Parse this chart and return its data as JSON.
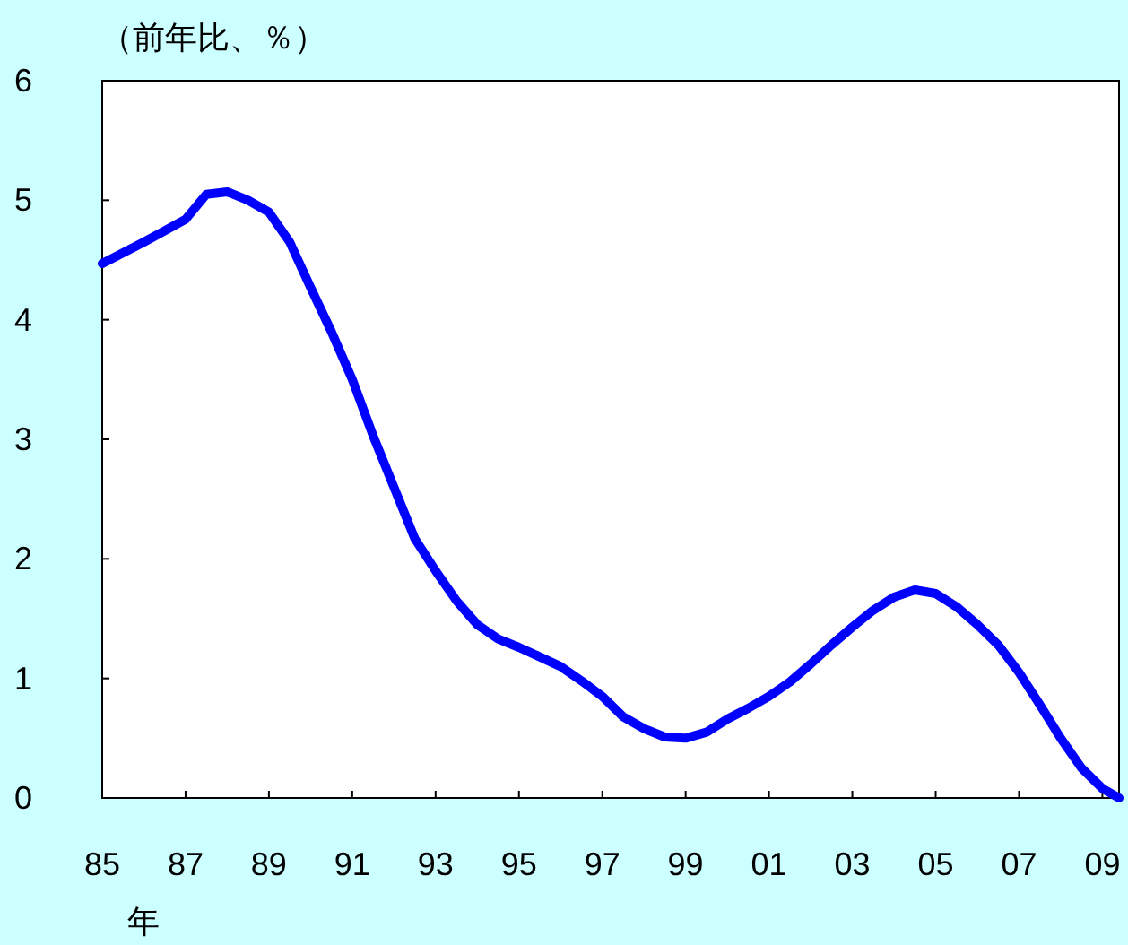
{
  "chart_data": {
    "type": "line",
    "ylabel": "（前年比、％）",
    "xlabel": "年",
    "x": [
      1985,
      1986,
      1987,
      1987.5,
      1988,
      1988.5,
      1989,
      1989.5,
      1990,
      1990.5,
      1991,
      1991.5,
      1992,
      1992.5,
      1993,
      1993.5,
      1994,
      1994.5,
      1995,
      1995.5,
      1996,
      1996.5,
      1997,
      1997.5,
      1998,
      1998.5,
      1999,
      1999.5,
      2000,
      2000.5,
      2001,
      2001.5,
      2002,
      2002.5,
      2003,
      2003.5,
      2004,
      2004.5,
      2005,
      2005.5,
      2006,
      2006.5,
      2007,
      2007.5,
      2008,
      2008.5,
      2009,
      2009.4
    ],
    "values": [
      4.47,
      4.65,
      4.84,
      5.05,
      5.07,
      5.0,
      4.9,
      4.65,
      4.27,
      3.9,
      3.5,
      3.03,
      2.6,
      2.17,
      1.9,
      1.65,
      1.45,
      1.33,
      1.26,
      1.18,
      1.1,
      0.98,
      0.85,
      0.68,
      0.58,
      0.51,
      0.5,
      0.55,
      0.66,
      0.75,
      0.85,
      0.97,
      1.12,
      1.28,
      1.43,
      1.57,
      1.68,
      1.74,
      1.71,
      1.6,
      1.45,
      1.28,
      1.05,
      0.78,
      0.5,
      0.25,
      0.08,
      0.0
    ],
    "color": "#0000ff",
    "xlim": [
      1985,
      2009.4
    ],
    "ylim": [
      0,
      6
    ],
    "xticks": [
      {
        "value": 1985,
        "label": "85"
      },
      {
        "value": 1987,
        "label": "87"
      },
      {
        "value": 1989,
        "label": "89"
      },
      {
        "value": 1991,
        "label": "91"
      },
      {
        "value": 1993,
        "label": "93"
      },
      {
        "value": 1995,
        "label": "95"
      },
      {
        "value": 1997,
        "label": "97"
      },
      {
        "value": 1999,
        "label": "99"
      },
      {
        "value": 2001,
        "label": "01"
      },
      {
        "value": 2003,
        "label": "03"
      },
      {
        "value": 2005,
        "label": "05"
      },
      {
        "value": 2007,
        "label": "07"
      },
      {
        "value": 2009,
        "label": "09"
      }
    ],
    "yticks": [
      0,
      1,
      2,
      3,
      4,
      5,
      6
    ]
  }
}
